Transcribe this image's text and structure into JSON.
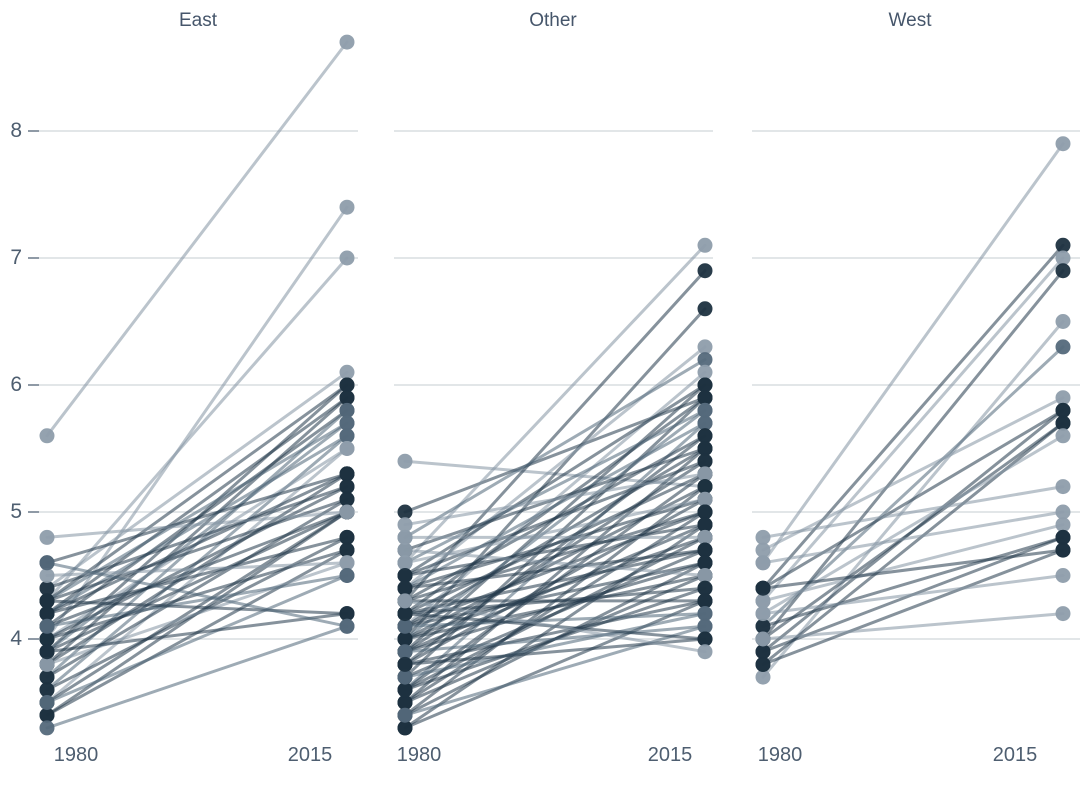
{
  "chart_data": {
    "type": "line",
    "variant": "slopegraph-small-multiples",
    "title": "",
    "x_categories": [
      "1980",
      "2015"
    ],
    "facet_titles": [
      "East",
      "Other",
      "West"
    ],
    "y_axis": {
      "tick_labels": [
        "8",
        "7",
        "6",
        "5",
        "4"
      ],
      "tick_values": [
        8,
        7,
        6,
        5,
        4
      ],
      "ylim": [
        3.2,
        8.8
      ],
      "grid": true
    },
    "colors": {
      "dot_dark": "#1d3140",
      "dot_medium": "#54697b",
      "dot_light": "#8e9dab",
      "line_dark": "#23394a",
      "line_medium": "#4f6678",
      "line_light": "#8494a3",
      "gridline": "#d9dde1",
      "title_text": "#46566b",
      "tick_text": "#4e5e70"
    },
    "facets": [
      {
        "title": "East",
        "lines": [
          [
            5.6,
            8.7,
            "l"
          ],
          [
            4.0,
            7.4,
            "l"
          ],
          [
            4.3,
            7.0,
            "l"
          ],
          [
            4.4,
            6.1,
            "l"
          ],
          [
            4.3,
            6.0,
            "d"
          ],
          [
            3.9,
            6.0,
            "d"
          ],
          [
            4.2,
            5.9,
            "d"
          ],
          [
            3.8,
            5.9,
            "d"
          ],
          [
            4.1,
            5.8,
            "d"
          ],
          [
            3.7,
            5.8,
            "m"
          ],
          [
            4.3,
            5.7,
            "m"
          ],
          [
            3.9,
            5.7,
            "m"
          ],
          [
            4.2,
            5.6,
            "m"
          ],
          [
            3.6,
            5.6,
            "m"
          ],
          [
            4.0,
            5.5,
            "l"
          ],
          [
            3.5,
            5.5,
            "l"
          ],
          [
            4.6,
            5.3,
            "d"
          ],
          [
            4.2,
            5.3,
            "d"
          ],
          [
            3.8,
            5.3,
            "d"
          ],
          [
            4.4,
            5.2,
            "d"
          ],
          [
            4.0,
            5.2,
            "d"
          ],
          [
            4.3,
            5.1,
            "d"
          ],
          [
            3.7,
            5.1,
            "d"
          ],
          [
            4.1,
            5.0,
            "d"
          ],
          [
            3.9,
            5.0,
            "d"
          ],
          [
            3.5,
            5.0,
            "d"
          ],
          [
            3.4,
            5.0,
            "d"
          ],
          [
            4.8,
            5.0,
            "l"
          ],
          [
            4.2,
            4.8,
            "d"
          ],
          [
            3.6,
            4.8,
            "d"
          ],
          [
            4.0,
            4.7,
            "d"
          ],
          [
            3.4,
            4.7,
            "d"
          ],
          [
            4.5,
            4.6,
            "l"
          ],
          [
            3.8,
            4.6,
            "l"
          ],
          [
            4.1,
            4.5,
            "m"
          ],
          [
            3.5,
            4.5,
            "m"
          ],
          [
            4.3,
            4.2,
            "d"
          ],
          [
            3.9,
            4.2,
            "d"
          ],
          [
            3.3,
            4.1,
            "m"
          ],
          [
            4.6,
            4.1,
            "m"
          ]
        ]
      },
      {
        "title": "Other",
        "lines": [
          [
            5.4,
            5.2,
            "l"
          ],
          [
            5.0,
            5.9,
            "d"
          ],
          [
            4.6,
            7.1,
            "l"
          ],
          [
            4.3,
            6.9,
            "d"
          ],
          [
            4.0,
            6.6,
            "d"
          ],
          [
            4.4,
            6.3,
            "l"
          ],
          [
            4.8,
            6.2,
            "m"
          ],
          [
            4.1,
            6.1,
            "l"
          ],
          [
            4.5,
            6.0,
            "d"
          ],
          [
            3.9,
            6.0,
            "d"
          ],
          [
            4.2,
            5.9,
            "d"
          ],
          [
            3.7,
            5.9,
            "d"
          ],
          [
            4.6,
            5.8,
            "m"
          ],
          [
            4.0,
            5.8,
            "m"
          ],
          [
            4.4,
            5.7,
            "m"
          ],
          [
            3.6,
            5.7,
            "m"
          ],
          [
            4.3,
            5.6,
            "d"
          ],
          [
            3.8,
            5.6,
            "d"
          ],
          [
            4.7,
            5.5,
            "d"
          ],
          [
            4.1,
            5.5,
            "d"
          ],
          [
            3.5,
            5.5,
            "d"
          ],
          [
            4.5,
            5.4,
            "d"
          ],
          [
            3.9,
            5.4,
            "d"
          ],
          [
            4.2,
            5.3,
            "d"
          ],
          [
            3.6,
            5.3,
            "d"
          ],
          [
            4.9,
            5.3,
            "l"
          ],
          [
            4.0,
            5.2,
            "d"
          ],
          [
            3.4,
            5.2,
            "d"
          ],
          [
            4.4,
            5.1,
            "d"
          ],
          [
            3.8,
            5.1,
            "d"
          ],
          [
            4.6,
            5.1,
            "l"
          ],
          [
            4.1,
            5.0,
            "d"
          ],
          [
            3.5,
            5.0,
            "d"
          ],
          [
            4.3,
            5.0,
            "d"
          ],
          [
            3.9,
            4.9,
            "d"
          ],
          [
            3.3,
            4.9,
            "d"
          ],
          [
            4.5,
            4.9,
            "d"
          ],
          [
            4.0,
            4.8,
            "d"
          ],
          [
            3.6,
            4.8,
            "d"
          ],
          [
            4.8,
            4.8,
            "l"
          ],
          [
            4.2,
            4.7,
            "d"
          ],
          [
            3.7,
            4.7,
            "d"
          ],
          [
            4.4,
            4.7,
            "d"
          ],
          [
            3.9,
            4.6,
            "d"
          ],
          [
            3.4,
            4.6,
            "d"
          ],
          [
            4.1,
            4.6,
            "d"
          ],
          [
            4.0,
            4.5,
            "d"
          ],
          [
            3.5,
            4.5,
            "d"
          ],
          [
            4.7,
            4.5,
            "l"
          ],
          [
            4.2,
            4.4,
            "d"
          ],
          [
            3.6,
            4.4,
            "d"
          ],
          [
            3.8,
            4.3,
            "d"
          ],
          [
            3.3,
            4.3,
            "d"
          ],
          [
            4.3,
            4.3,
            "d"
          ],
          [
            4.1,
            4.2,
            "m"
          ],
          [
            3.7,
            4.2,
            "m"
          ],
          [
            3.9,
            4.1,
            "m"
          ],
          [
            3.4,
            4.1,
            "m"
          ],
          [
            4.2,
            4.0,
            "d"
          ],
          [
            3.8,
            4.0,
            "d"
          ],
          [
            4.3,
            3.9,
            "l"
          ]
        ]
      },
      {
        "title": "West",
        "lines": [
          [
            4.6,
            7.9,
            "l"
          ],
          [
            4.4,
            7.1,
            "d"
          ],
          [
            4.3,
            7.0,
            "l"
          ],
          [
            4.0,
            6.9,
            "d"
          ],
          [
            3.7,
            6.5,
            "l"
          ],
          [
            4.1,
            6.3,
            "m"
          ],
          [
            4.7,
            5.9,
            "l"
          ],
          [
            4.4,
            5.8,
            "d"
          ],
          [
            3.9,
            5.8,
            "d"
          ],
          [
            4.0,
            5.7,
            "d"
          ],
          [
            3.8,
            5.7,
            "d"
          ],
          [
            4.2,
            5.6,
            "l"
          ],
          [
            4.8,
            5.2,
            "l"
          ],
          [
            4.6,
            5.0,
            "l"
          ],
          [
            4.3,
            4.9,
            "l"
          ],
          [
            4.1,
            4.8,
            "d"
          ],
          [
            3.9,
            4.8,
            "d"
          ],
          [
            4.4,
            4.7,
            "d"
          ],
          [
            3.8,
            4.7,
            "d"
          ],
          [
            4.2,
            4.5,
            "l"
          ],
          [
            4.0,
            4.2,
            "l"
          ]
        ]
      }
    ]
  }
}
